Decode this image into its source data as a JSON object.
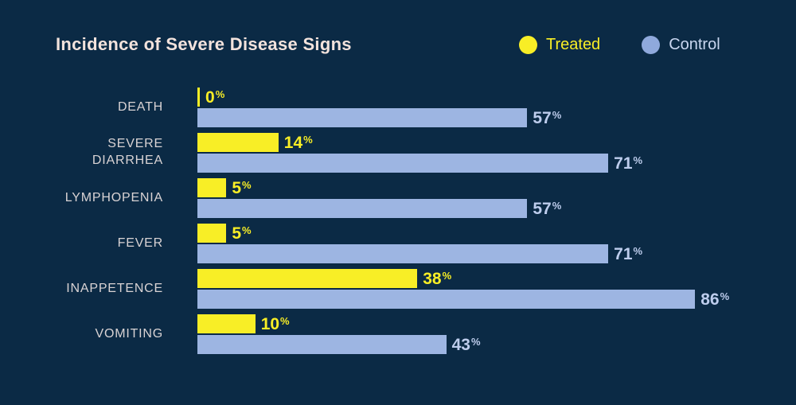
{
  "title": "Incidence of Severe Disease Signs",
  "legend": [
    {
      "label": "Treated",
      "color": "#F8EE26"
    },
    {
      "label": "Control",
      "color": "#8FA9DC"
    }
  ],
  "colors": {
    "background": "#0B2A45",
    "title_text": "#F3E3DD",
    "category_text": "#D9D3D4",
    "treated": "#F8EE26",
    "control": "#9DB5E2",
    "treated_value_text": "#F8EE26",
    "control_value_text": "#BECDED"
  },
  "chart_data": {
    "type": "bar",
    "orientation": "horizontal",
    "title": "Incidence of Severe Disease Signs",
    "xlabel": "",
    "ylabel": "",
    "xlim": [
      0,
      100
    ],
    "grid": false,
    "legend_position": "top-right",
    "value_suffix": "%",
    "categories": [
      "DEATH",
      "SEVERE\nDIARRHEA",
      "LYMPHOPENIA",
      "FEVER",
      "INAPPETENCE",
      "VOMITING"
    ],
    "series": [
      {
        "name": "Treated",
        "color": "#F8EE26",
        "values": [
          0,
          14,
          5,
          5,
          38,
          10
        ]
      },
      {
        "name": "Control",
        "color": "#9DB5E2",
        "values": [
          57,
          71,
          57,
          71,
          86,
          43
        ]
      }
    ]
  }
}
